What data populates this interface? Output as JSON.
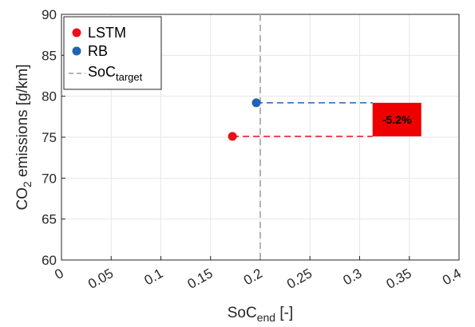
{
  "chart_data": {
    "type": "scatter",
    "xlabel": {
      "base": "SoC",
      "sub": "end",
      "suffix": " [-]"
    },
    "ylabel": {
      "prefix": "CO",
      "sub": "2",
      "suffix": " emissions [g/km]"
    },
    "xlim": [
      0,
      0.4
    ],
    "ylim": [
      60,
      90
    ],
    "xticks": [
      0,
      0.05,
      0.1,
      0.15,
      0.2,
      0.25,
      0.3,
      0.35,
      0.4
    ],
    "xtick_labels": [
      "0",
      "0.05",
      "0.1",
      "0.15",
      "0.2",
      "0.25",
      "0.3",
      "0.35",
      "0.4"
    ],
    "yticks": [
      60,
      65,
      70,
      75,
      80,
      85,
      90
    ],
    "ytick_labels": [
      "60",
      "65",
      "70",
      "75",
      "80",
      "85",
      "90"
    ],
    "grid": true,
    "legend_position": "top-left",
    "series": [
      {
        "name": "LSTM",
        "x": 0.172,
        "y": 75.1,
        "color": "#e8101a"
      },
      {
        "name": "RB",
        "x": 0.196,
        "y": 79.2,
        "color": "#1f63b3"
      }
    ],
    "reference_line": {
      "name_base": "SoC",
      "name_sub": "target",
      "x": 0.2,
      "color": "#b3b3b3"
    },
    "guide_lines_to_x": 0.313,
    "annotation": {
      "text": "-5.2%",
      "color": "#ee0000",
      "x0": 0.313,
      "x1": 0.362,
      "y0": 75.1,
      "y1": 79.2
    }
  }
}
